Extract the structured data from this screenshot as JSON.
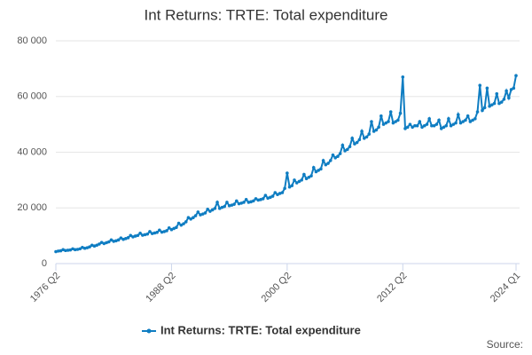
{
  "chart_data": {
    "type": "line",
    "title": "Int Returns: TRTE: Total expenditure",
    "source": "Source:",
    "categories": [
      "1976 Q2",
      null,
      null,
      null,
      null,
      null,
      null,
      null,
      null,
      null,
      null,
      null,
      null,
      null,
      null,
      null,
      null,
      null,
      null,
      null,
      null,
      null,
      null,
      null,
      null,
      null,
      null,
      null,
      null,
      null,
      null,
      null,
      null,
      null,
      null,
      null,
      null,
      null,
      null,
      null,
      null,
      null,
      null,
      null,
      null,
      null,
      null,
      null,
      "1988 Q2",
      null,
      null,
      null,
      null,
      null,
      null,
      null,
      null,
      null,
      null,
      null,
      null,
      null,
      null,
      null,
      null,
      null,
      null,
      null,
      null,
      null,
      null,
      null,
      null,
      null,
      null,
      null,
      null,
      null,
      null,
      null,
      null,
      null,
      null,
      null,
      null,
      null,
      null,
      null,
      null,
      null,
      null,
      null,
      null,
      null,
      null,
      null,
      "2000 Q2",
      null,
      null,
      null,
      null,
      null,
      null,
      null,
      null,
      null,
      null,
      null,
      null,
      null,
      null,
      null,
      null,
      null,
      null,
      null,
      null,
      null,
      null,
      null,
      null,
      null,
      null,
      null,
      null,
      null,
      null,
      null,
      null,
      null,
      null,
      null,
      null,
      null,
      null,
      null,
      null,
      null,
      null,
      null,
      null,
      null,
      null,
      null,
      "2012 Q2",
      null,
      null,
      null,
      null,
      null,
      null,
      null,
      null,
      null,
      null,
      null,
      null,
      null,
      null,
      null,
      null,
      null,
      null,
      null,
      null,
      null,
      null,
      null,
      null,
      null,
      null,
      null,
      null,
      null,
      null,
      null,
      null,
      null,
      null,
      null,
      null,
      null,
      null,
      null,
      null,
      null,
      null,
      null,
      null,
      null,
      null,
      "2024 Q1"
    ],
    "series": [
      {
        "name": "Int Returns: TRTE: Total expenditure",
        "color": "#0f7dc2",
        "values": [
          4300,
          4500,
          4600,
          5000,
          4700,
          4800,
          4900,
          5300,
          5000,
          5100,
          5300,
          5800,
          5500,
          5700,
          6000,
          6600,
          6300,
          6600,
          7000,
          7600,
          7200,
          7500,
          7800,
          8500,
          8000,
          8200,
          8500,
          9200,
          8700,
          9000,
          9300,
          10100,
          9600,
          9900,
          10100,
          10900,
          10200,
          10400,
          10600,
          11500,
          10800,
          11000,
          11200,
          12000,
          11300,
          11500,
          11800,
          12800,
          12200,
          12600,
          13000,
          14500,
          13800,
          14300,
          15000,
          16500,
          16000,
          16500,
          17200,
          18500,
          17500,
          17800,
          18200,
          19500,
          18800,
          19300,
          19800,
          22000,
          19800,
          20200,
          20500,
          22000,
          20800,
          21000,
          21300,
          22500,
          21500,
          21700,
          22000,
          23000,
          22000,
          22200,
          22500,
          23300,
          22800,
          23000,
          23300,
          24500,
          23500,
          23800,
          24200,
          25500,
          24800,
          25200,
          25500,
          27000,
          32500,
          27500,
          28000,
          30000,
          29000,
          29500,
          30000,
          32000,
          30500,
          31000,
          31500,
          34500,
          33000,
          33500,
          34000,
          37000,
          35500,
          36000,
          37000,
          39000,
          38000,
          38500,
          39500,
          42500,
          40500,
          41000,
          42000,
          45000,
          43000,
          43500,
          44500,
          47500,
          45000,
          45500,
          46500,
          51000,
          47500,
          48000,
          49000,
          53000,
          50000,
          50500,
          51000,
          54500,
          50500,
          51000,
          51500,
          54000,
          67000,
          48500,
          49000,
          50000,
          49000,
          49500,
          49500,
          51000,
          49000,
          49500,
          50000,
          52000,
          49500,
          49500,
          50000,
          51500,
          48500,
          49000,
          49500,
          52000,
          49500,
          50000,
          50500,
          53500,
          50500,
          51000,
          51500,
          53000,
          51000,
          51500,
          52000,
          54500,
          64000,
          55000,
          56000,
          63000,
          56500,
          57000,
          57500,
          61000,
          57500,
          58000,
          59000,
          62000,
          59500,
          62500,
          63000,
          67500
        ]
      }
    ],
    "ylim": [
      0,
      80000
    ],
    "yticks": [
      0,
      {
        "value": 20000,
        "label": "20 000"
      },
      {
        "value": 40000,
        "label": "40 000"
      },
      {
        "value": 60000,
        "label": "60 000"
      },
      {
        "value": 80000,
        "label": "80 000"
      }
    ],
    "grid": true,
    "legend": "bottom"
  }
}
